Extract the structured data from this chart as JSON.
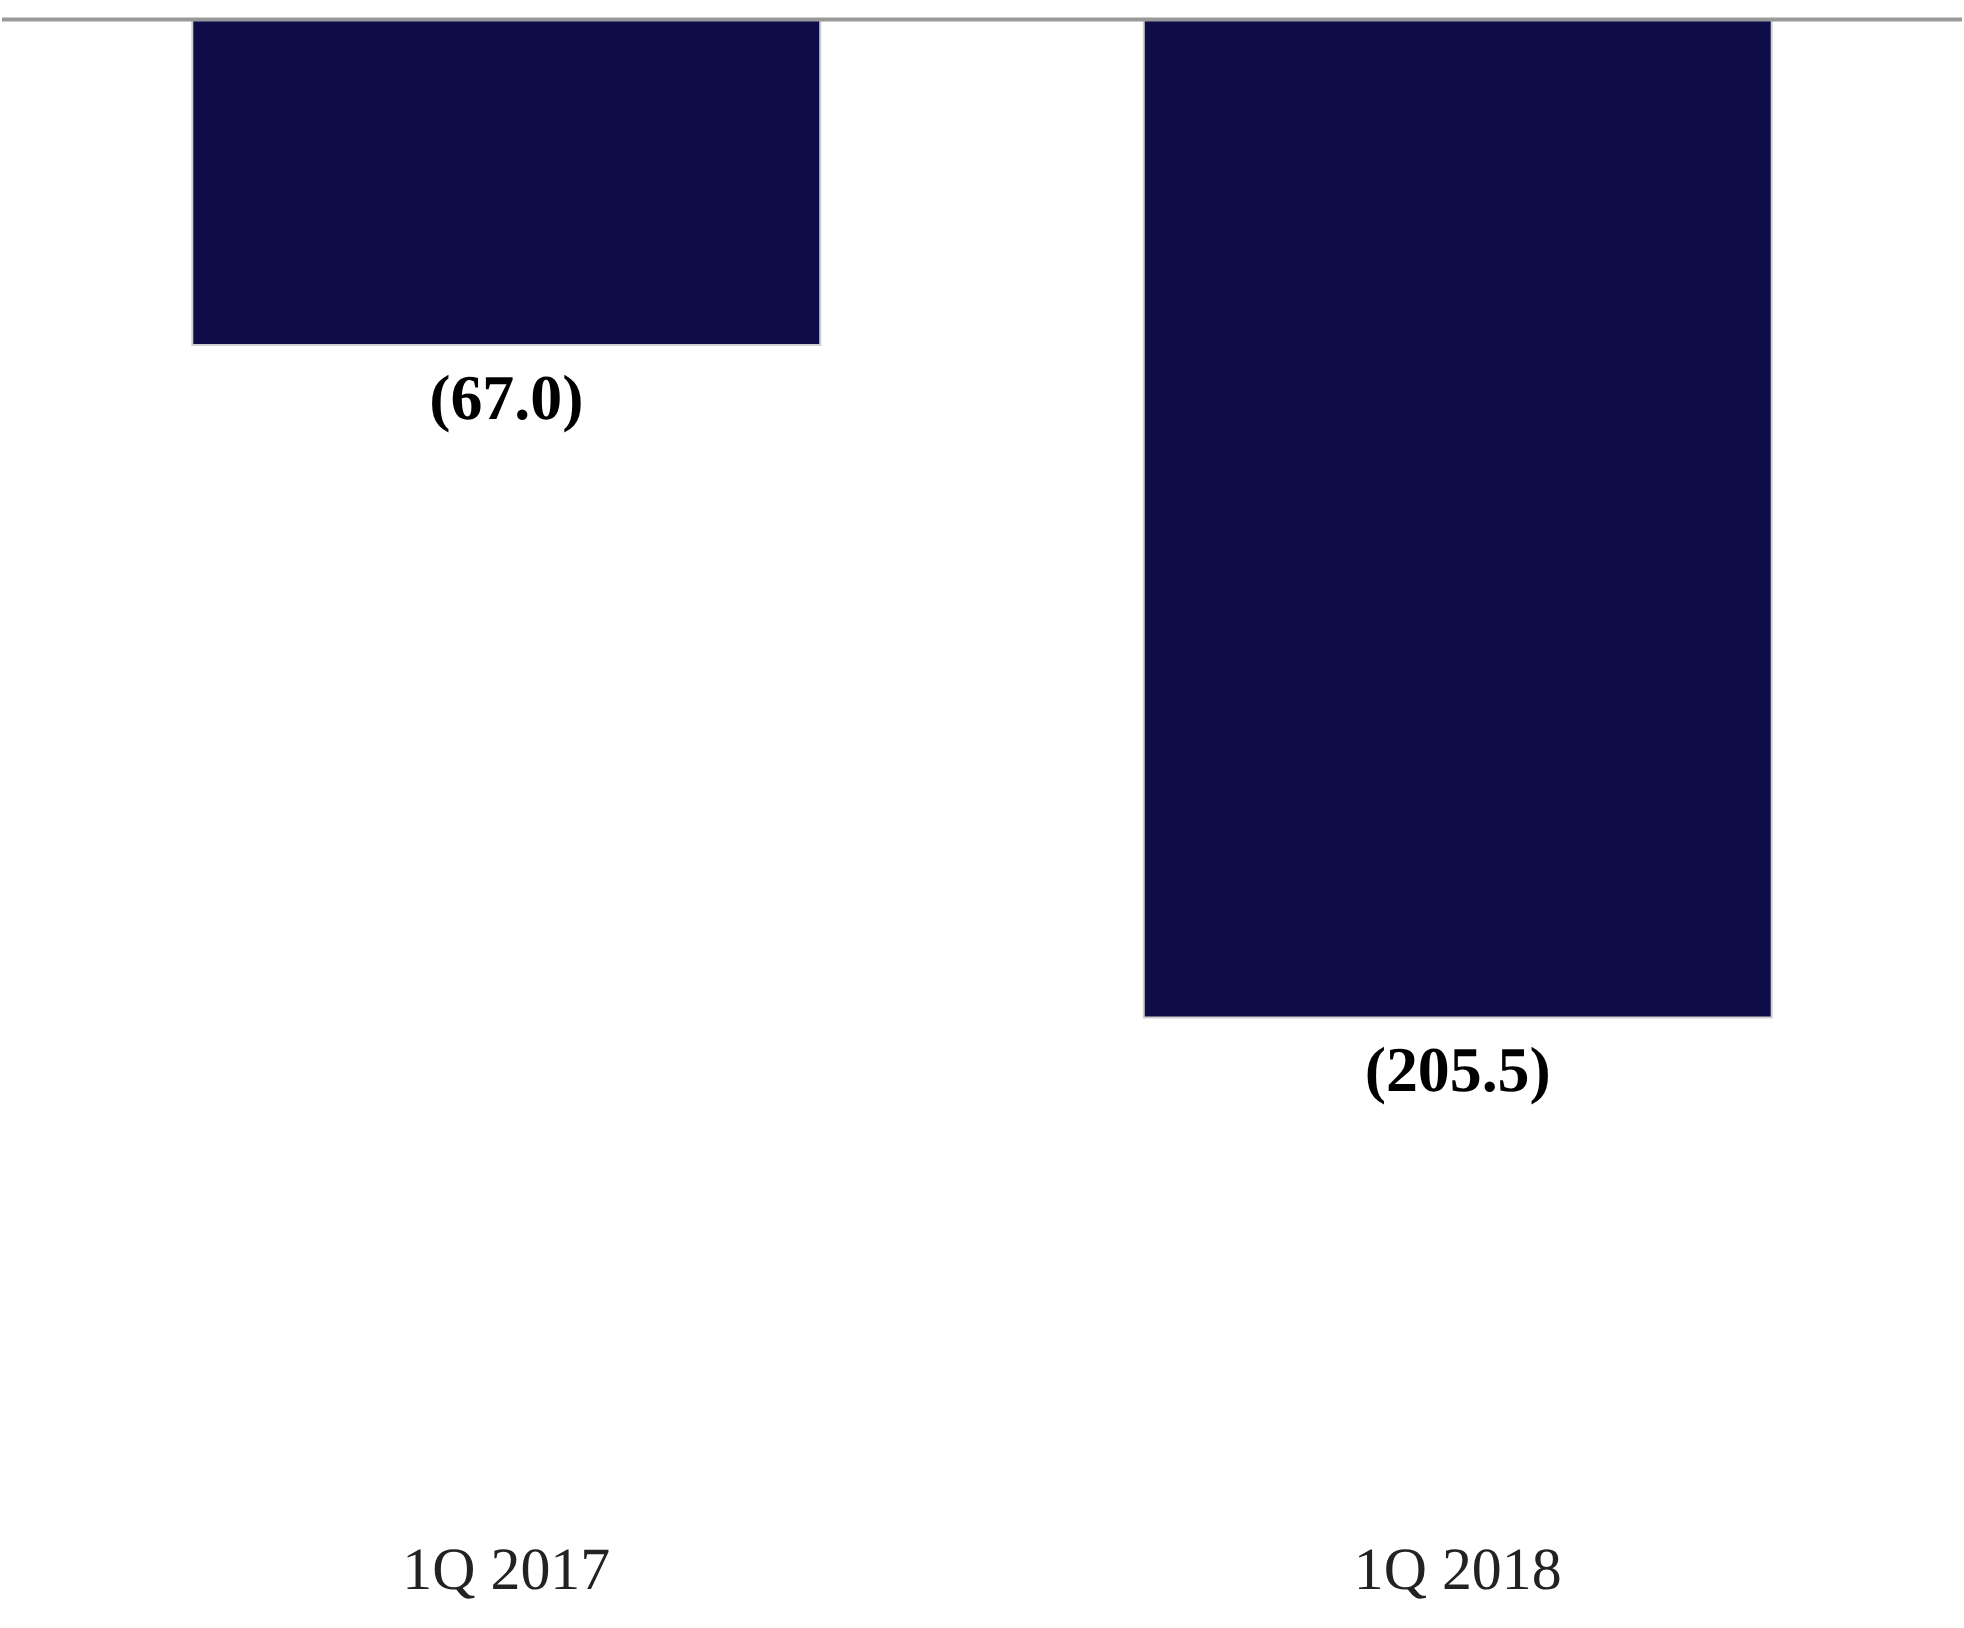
{
  "chart_data": {
    "type": "bar",
    "categories": [
      "1Q 2017",
      "1Q 2018"
    ],
    "values": [
      -67.0,
      -205.5
    ],
    "color": "#0f0c4a",
    "value_labels": [
      "(67.0)",
      "(205.5)"
    ],
    "grid": false,
    "tick_labels": "x"
  }
}
